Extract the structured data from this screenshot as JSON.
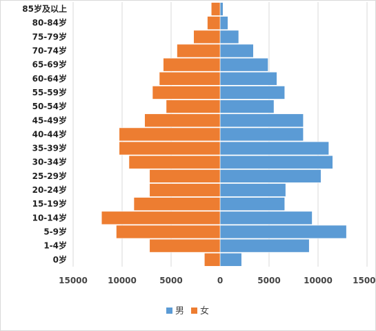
{
  "chart_data": {
    "type": "bar",
    "orientation": "horizontal",
    "layout": "population-pyramid",
    "categories": [
      "0岁",
      "1-4岁",
      "5-9岁",
      "10-14岁",
      "15-19岁",
      "20-24岁",
      "25-29岁",
      "30-34岁",
      "35-39岁",
      "40-44岁",
      "45-49岁",
      "50-54岁",
      "55-59岁",
      "60-64岁",
      "65-69岁",
      "70-74岁",
      "75-79岁",
      "80-84岁",
      "85岁及以上"
    ],
    "series": [
      {
        "name": "男",
        "color": "#5b9bd5",
        "side": "right",
        "values": [
          2200,
          9100,
          12900,
          9400,
          6600,
          6700,
          10300,
          11500,
          11100,
          8500,
          8500,
          5500,
          6600,
          5800,
          4900,
          3400,
          1900,
          800,
          300
        ]
      },
      {
        "name": "女",
        "color": "#ed7d31",
        "side": "left",
        "values": [
          1600,
          7200,
          10600,
          12100,
          8800,
          7200,
          7200,
          9300,
          10300,
          10300,
          7700,
          5500,
          6900,
          6200,
          5800,
          4400,
          2700,
          1300,
          900
        ]
      }
    ],
    "x_ticks": [
      "15000",
      "10000",
      "5000",
      "0",
      "5000",
      "10000",
      "15000"
    ],
    "xlim": [
      -15000,
      15000
    ],
    "grid": "vertical",
    "legend": {
      "position": "bottom",
      "entries": [
        {
          "label": "男",
          "color": "#5b9bd5"
        },
        {
          "label": "女",
          "color": "#ed7d31"
        }
      ]
    },
    "title": ""
  }
}
